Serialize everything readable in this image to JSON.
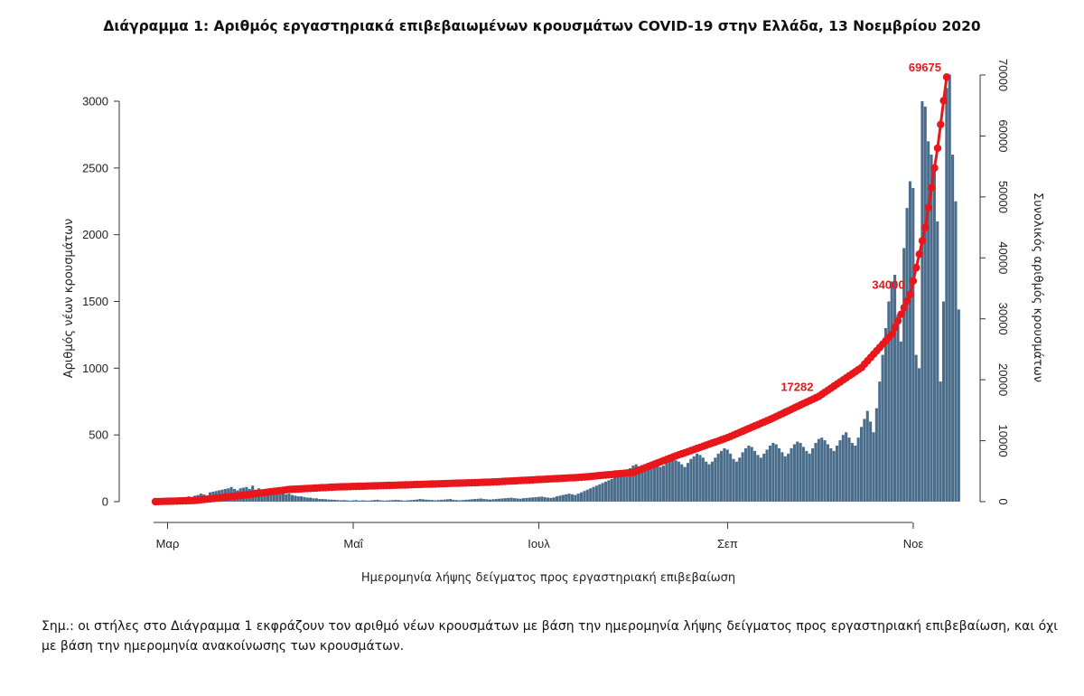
{
  "title": "Διάγραμμα 1: Αριθμός εργαστηριακά επιβεβαιωμένων κρουσμάτων COVID-19 στην Ελλάδα, 13 Νοεμβρίου 2020",
  "note": "Σημ.: οι στήλες στο Διάγραμμα 1 εκφράζουν τον αριθμό νέων κρουσμάτων με βάση την ημερομηνία λήψης δείγματος προς εργαστηριακή επιβεβαίωση, και όχι με βάση την ημερομηνία ανακοίνωσης των κρουσμάτων.",
  "chart_data": {
    "type": "bar",
    "title": "Διάγραμμα 1: Αριθμός εργαστηριακά επιβεβαιωμένων κρουσμάτων COVID-19 στην Ελλάδα, 13 Νοεμβρίου 2020",
    "xlabel": "Ημερομηνία λήψης δείγματος προς εργαστηριακή επιβεβαίωση",
    "ylabel": "Αριθμός νέων κρουσμάτων",
    "y2label": "Συνολικός αριθμός κρουσμάτων",
    "ylim": [
      0,
      3300
    ],
    "y2lim": [
      0,
      72000
    ],
    "yticks": [
      0,
      500,
      1000,
      1500,
      2000,
      2500,
      3000
    ],
    "y2ticks": [
      0,
      10000,
      20000,
      30000,
      40000,
      50000,
      60000,
      70000
    ],
    "y2ticklabels": [
      "0",
      "10000",
      "20000",
      "30000",
      "40000",
      "50000",
      "60000",
      "70000"
    ],
    "x_date_range": [
      "2020-02-26",
      "2020-11-12"
    ],
    "xticks": [
      {
        "date": "2020-03-01",
        "label": "Μαρ"
      },
      {
        "date": "2020-05-01",
        "label": "Μαΐ"
      },
      {
        "date": "2020-07-01",
        "label": "Ιουλ"
      },
      {
        "date": "2020-09-01",
        "label": "Σεπ"
      },
      {
        "date": "2020-11-01",
        "label": "Νοε"
      }
    ],
    "grid": false,
    "bar_color": "#4a6d8c",
    "line_color": "#e8171b",
    "series": [
      {
        "type": "bar",
        "axis": "left",
        "start_date": "2020-02-26",
        "values": [
          1,
          0,
          2,
          3,
          2,
          10,
          15,
          20,
          25,
          20,
          30,
          40,
          35,
          45,
          50,
          60,
          55,
          45,
          70,
          75,
          80,
          85,
          90,
          95,
          100,
          110,
          95,
          85,
          100,
          105,
          110,
          95,
          120,
          90,
          100,
          85,
          80,
          95,
          90,
          100,
          85,
          70,
          65,
          55,
          60,
          50,
          45,
          40,
          40,
          35,
          30,
          30,
          25,
          25,
          20,
          20,
          18,
          16,
          15,
          14,
          12,
          10,
          12,
          10,
          8,
          10,
          12,
          8,
          10,
          9,
          8,
          10,
          12,
          14,
          10,
          8,
          9,
          10,
          12,
          14,
          12,
          10,
          8,
          10,
          12,
          14,
          16,
          20,
          18,
          15,
          14,
          12,
          10,
          12,
          14,
          16,
          18,
          20,
          14,
          12,
          10,
          12,
          14,
          16,
          18,
          20,
          22,
          24,
          20,
          18,
          16,
          18,
          20,
          22,
          24,
          26,
          28,
          30,
          26,
          24,
          22,
          26,
          28,
          30,
          32,
          34,
          36,
          38,
          34,
          30,
          28,
          32,
          40,
          45,
          50,
          55,
          60,
          55,
          50,
          60,
          70,
          80,
          90,
          100,
          110,
          120,
          130,
          140,
          150,
          160,
          170,
          180,
          200,
          190,
          210,
          230,
          250,
          270,
          280,
          260,
          240,
          250,
          270,
          290,
          300,
          280,
          260,
          270,
          300,
          320,
          330,
          310,
          300,
          280,
          260,
          290,
          320,
          340,
          360,
          350,
          330,
          300,
          280,
          300,
          330,
          360,
          380,
          400,
          390,
          360,
          320,
          300,
          330,
          370,
          400,
          420,
          410,
          380,
          350,
          330,
          360,
          390,
          420,
          440,
          430,
          400,
          370,
          340,
          360,
          400,
          430,
          450,
          440,
          410,
          380,
          360,
          400,
          440,
          470,
          480,
          460,
          430,
          400,
          380,
          420,
          460,
          500,
          520,
          480,
          440,
          420,
          480,
          560,
          620,
          680,
          600,
          520,
          700,
          900,
          1100,
          1300,
          1500,
          1650,
          1700,
          1400,
          1200,
          1900,
          2200,
          2400,
          2350,
          1100,
          1000,
          3000,
          2960,
          2700,
          2600,
          2500,
          2100,
          900,
          1500,
          3100,
          3200,
          2600,
          2250,
          1440
        ]
      },
      {
        "type": "line",
        "axis": "right",
        "name": "Συνολικός αριθμός κρουσμάτων",
        "knots": [
          {
            "date": "2020-02-26",
            "value": 0
          },
          {
            "date": "2020-03-10",
            "value": 200
          },
          {
            "date": "2020-03-25",
            "value": 1000
          },
          {
            "date": "2020-04-10",
            "value": 2000
          },
          {
            "date": "2020-04-25",
            "value": 2400
          },
          {
            "date": "2020-05-15",
            "value": 2700
          },
          {
            "date": "2020-06-15",
            "value": 3200
          },
          {
            "date": "2020-07-15",
            "value": 4000
          },
          {
            "date": "2020-08-01",
            "value": 4800
          },
          {
            "date": "2020-08-15",
            "value": 7500
          },
          {
            "date": "2020-09-01",
            "value": 10500
          },
          {
            "date": "2020-09-15",
            "value": 13500
          },
          {
            "date": "2020-10-01",
            "value": 17282
          },
          {
            "date": "2020-10-15",
            "value": 22000
          },
          {
            "date": "2020-10-25",
            "value": 27500
          },
          {
            "date": "2020-10-31",
            "value": 34000
          },
          {
            "date": "2020-11-05",
            "value": 45000
          },
          {
            "date": "2020-11-09",
            "value": 58000
          },
          {
            "date": "2020-11-12",
            "value": 69675
          }
        ]
      }
    ],
    "annotations": [
      {
        "text": "17282",
        "date": "2020-10-01",
        "value": 17282,
        "axis": "right"
      },
      {
        "text": "34000",
        "date": "2020-10-31",
        "value": 34000,
        "axis": "right"
      },
      {
        "text": "69675",
        "date": "2020-11-12",
        "value": 69675,
        "axis": "right"
      }
    ]
  }
}
